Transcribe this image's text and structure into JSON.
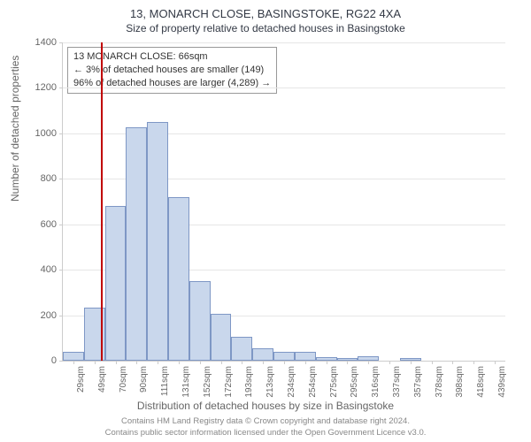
{
  "title": "13, MONARCH CLOSE, BASINGSTOKE, RG22 4XA",
  "subtitle": "Size of property relative to detached houses in Basingstoke",
  "chart": {
    "type": "histogram",
    "ylabel": "Number of detached properties",
    "xlabel": "Distribution of detached houses by size in Basingstoke",
    "ylim": [
      0,
      1400
    ],
    "ytick_step": 200,
    "bar_fill_color": "#c9d7ec",
    "bar_border_color": "#7e97c5",
    "grid_color": "#e6e6e6",
    "axis_color": "#cccccc",
    "background_color": "#ffffff",
    "marker_color": "#c00000",
    "marker_x_category": "70sqm",
    "categories": [
      "29sqm",
      "49sqm",
      "70sqm",
      "90sqm",
      "111sqm",
      "131sqm",
      "152sqm",
      "172sqm",
      "193sqm",
      "213sqm",
      "234sqm",
      "254sqm",
      "275sqm",
      "295sqm",
      "316sqm",
      "337sqm",
      "357sqm",
      "378sqm",
      "398sqm",
      "418sqm",
      "439sqm"
    ],
    "values": [
      40,
      235,
      680,
      1025,
      1050,
      720,
      350,
      205,
      105,
      55,
      40,
      40,
      15,
      10,
      18,
      0,
      10,
      0,
      0,
      0,
      0
    ],
    "label_fontsize": 12,
    "tick_fontsize": 11,
    "title_fontsize": 13
  },
  "legend": {
    "line1": "13 MONARCH CLOSE: 66sqm",
    "line2": "← 3% of detached houses are smaller (149)",
    "line3": "96% of detached houses are larger (4,289) →"
  },
  "credits": {
    "line1": "Contains HM Land Registry data © Crown copyright and database right 2024.",
    "line2": "Contains public sector information licensed under the Open Government Licence v3.0."
  }
}
